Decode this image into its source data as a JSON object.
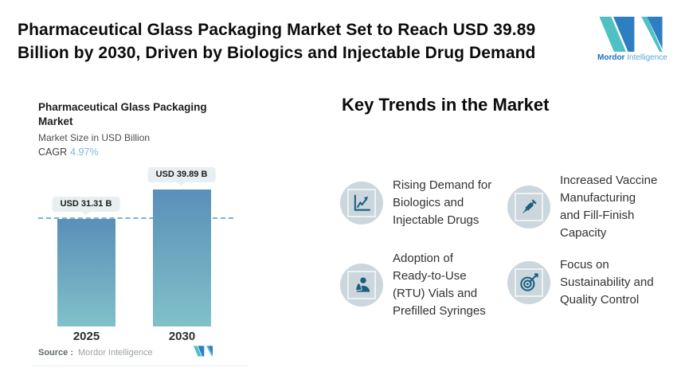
{
  "header": {
    "title": "Pharmaceutical Glass Packaging Market Set to Reach USD 39.89 Billion by 2030, Driven by Biologics and Injectable Drug Demand",
    "title_lines": [
      "Pharmaceutical Glass Packaging Market Set to Reach USD 39.89",
      "Billion by 2030, Driven by Biologics and Injectable Drug Demand"
    ],
    "brand": {
      "name_bold": "Mordor",
      "name_light": "Intelligence"
    }
  },
  "chart": {
    "title": "Pharmaceutical Glass Packaging Market",
    "title_lines": [
      "Pharmaceutical Glass Packaging",
      "Market"
    ],
    "subtitle": "Market Size in USD Billion",
    "cagr_label": "CAGR",
    "cagr_value": "4.97%",
    "source_label": "Source :",
    "source_value": "Mordor Intelligence"
  },
  "chart_data": {
    "type": "bar",
    "title": "Pharmaceutical Glass Packaging Market",
    "ylabel": "Market Size in USD Billion",
    "categories": [
      "2025",
      "2030"
    ],
    "values": [
      31.31,
      39.89
    ],
    "value_labels": [
      "USD 31.31 B",
      "USD 39.89 B"
    ],
    "unit": "USD Billion",
    "cagr_percent": 4.97,
    "reference_value": 31.31,
    "reference_line_style": "dashed",
    "ylim": [
      0,
      39.89
    ],
    "grid": false,
    "legend": "none",
    "bar_gradient": [
      "#5a8fb9",
      "#80c1c9"
    ]
  },
  "trends": {
    "heading": "Key Trends in the Market",
    "items": [
      {
        "icon": "line-chart-increase-icon",
        "text": "Rising Demand for Biologics and Injectable Drugs",
        "lines": [
          "Rising Demand for",
          "Biologics and",
          "Injectable Drugs"
        ]
      },
      {
        "icon": "syringe-icon",
        "text": "Increased Vaccine Manufacturing and Fill-Finish Capacity",
        "lines": [
          "Increased Vaccine",
          "Manufacturing",
          "and Fill-Finish",
          "Capacity"
        ]
      },
      {
        "icon": "scientist-flask-icon",
        "text": "Adoption of Ready-to-Use (RTU) Vials and Prefilled Syringes",
        "lines": [
          "Adoption of",
          "Ready-to-Use",
          "(RTU) Vials and",
          "Prefilled Syringes"
        ]
      },
      {
        "icon": "target-arrow-icon",
        "text": "Focus on Sustainability and Quality Control",
        "lines": [
          "Focus on",
          "Sustainability and",
          "Quality Control"
        ]
      }
    ]
  },
  "colors": {
    "brand_blue": "#2e7fc2",
    "brand_teal": "#4fc0c4",
    "bar_top": "#5a8fb9",
    "bar_bottom": "#80c1c9",
    "dashed_reference": "#7cb0d4",
    "cagr_value": "#7db8dc",
    "badge_background": "#e9eef0",
    "icon_circle_background": "#ccd6dd",
    "icon_glyph": "#1a5f80",
    "text_primary": "#0b0b0b"
  }
}
